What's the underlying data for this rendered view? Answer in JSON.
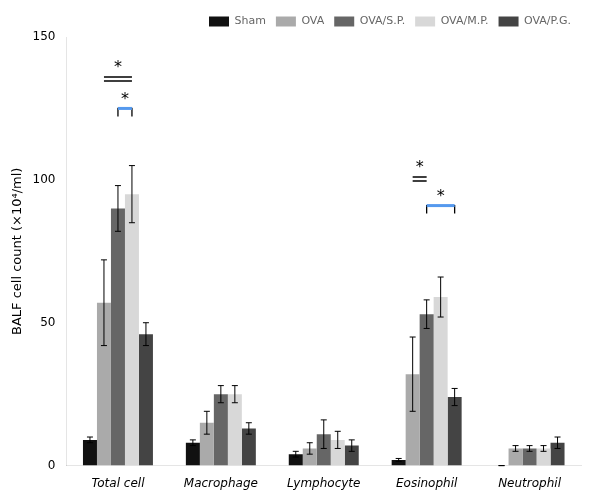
{
  "chart_data": {
    "type": "bar",
    "categories": [
      "Total cell",
      "Macrophage",
      "Lymphocyte",
      "Eosinophil",
      "Neutrophil"
    ],
    "series": [
      {
        "name": "Sham",
        "color": "#111111",
        "values": [
          9,
          8,
          4,
          2,
          0
        ],
        "errors": [
          1,
          1,
          1,
          0.5,
          0
        ]
      },
      {
        "name": "OVA",
        "color": "#aaaaaa",
        "values": [
          57,
          15,
          6,
          32,
          6
        ],
        "errors": [
          15,
          4,
          2,
          13,
          1
        ]
      },
      {
        "name": "OVA/S.P.",
        "color": "#666666",
        "values": [
          90,
          25,
          11,
          53,
          6
        ],
        "errors": [
          8,
          3,
          5,
          5,
          1
        ]
      },
      {
        "name": "OVA/M.P.",
        "color": "#d8d8d8",
        "values": [
          95,
          25,
          9,
          59,
          6
        ],
        "errors": [
          10,
          3,
          3,
          7,
          1
        ]
      },
      {
        "name": "OVA/P.G.",
        "color": "#444444",
        "values": [
          46,
          13,
          7,
          24,
          8
        ],
        "errors": [
          4,
          2,
          2,
          3,
          2
        ]
      }
    ],
    "ylabel": "BALF cell count (×10⁴/ml)",
    "ylim": [
      0,
      150
    ],
    "yticks": [
      0,
      50,
      100,
      150
    ],
    "grid": false,
    "legend": "upper right",
    "annotations": [
      {
        "text": "*",
        "category": "Total cell",
        "from": "OVA",
        "to": "OVA/M.P.",
        "y": 136,
        "line_style": "double"
      },
      {
        "text": "*",
        "category": "Total cell",
        "from": "OVA/S.P.",
        "to": "OVA/M.P.",
        "y": 125,
        "line_style": "bracket",
        "color": "#5599ee"
      },
      {
        "text": "*",
        "category": "Eosinophil",
        "from": "OVA",
        "to": "OVA/S.P.",
        "y": 101,
        "line_style": "double"
      },
      {
        "text": "*",
        "category": "Eosinophil",
        "from": "OVA/S.P.",
        "to": "OVA/P.G.",
        "y": 91,
        "line_style": "bracket",
        "color": "#5599ee"
      }
    ]
  }
}
